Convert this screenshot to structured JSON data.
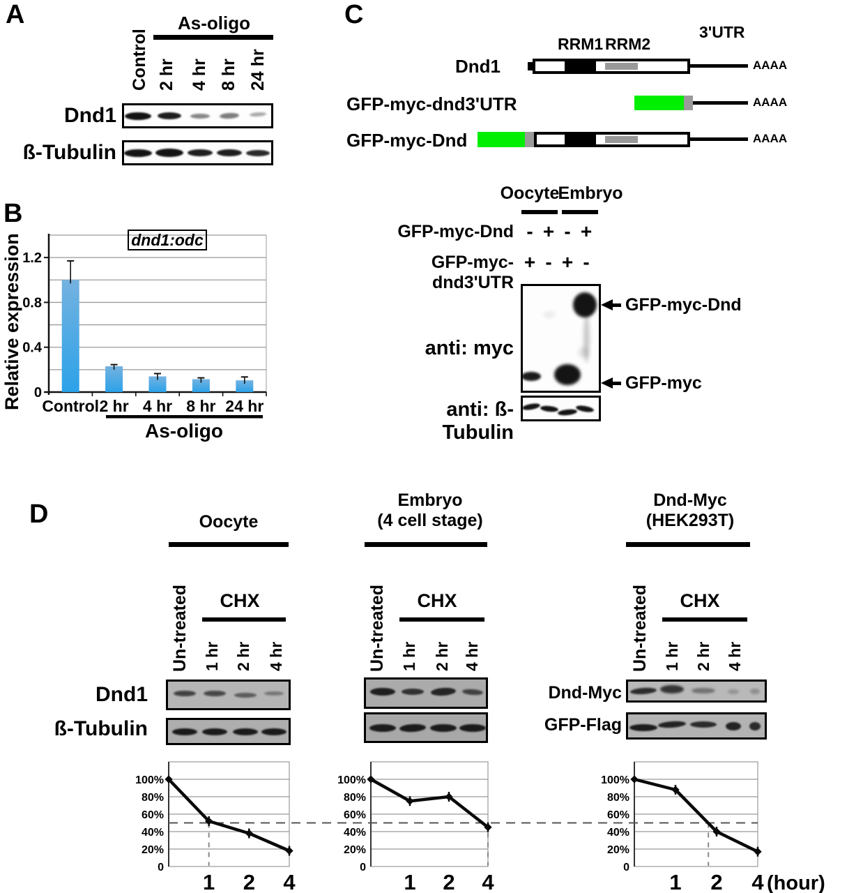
{
  "panels": {
    "A": {
      "label": "A",
      "treatment": "As-oligo",
      "lanes": [
        "Control",
        "2 hr",
        "4 hr",
        "8 hr",
        "24 hr"
      ],
      "rows": [
        "Dnd1",
        "ß-Tubulin"
      ]
    },
    "B": {
      "label": "B"
    },
    "C": {
      "label": "C",
      "diagram": {
        "domain_labels": [
          "RRM1",
          "RRM2"
        ],
        "utr_label": "3'UTR",
        "polya": "AAAA",
        "rows": [
          "Dnd1",
          "GFP-myc-dnd3'UTR",
          "GFP-myc-Dnd"
        ]
      },
      "blot": {
        "groups": [
          "Oocyte",
          "Embryo"
        ],
        "condition_rows": [
          {
            "label": "GFP-myc-Dnd",
            "signs": [
              "-",
              "+",
              "-",
              "+"
            ]
          },
          {
            "label": "GFP-myc-dnd3'UTR",
            "signs": [
              "+",
              "-",
              "+",
              "-"
            ]
          }
        ],
        "probe1": "anti: myc",
        "probe2": "anti: ß-Tubulin",
        "band_labels": [
          "GFP-myc-Dnd",
          "GFP-myc"
        ]
      }
    },
    "D": {
      "label": "D",
      "sets": [
        {
          "title": [
            "Oocyte",
            ""
          ],
          "untreated": "Un-treated",
          "treatment": "CHX",
          "times": [
            "1 hr",
            "2 hr",
            "4 hr"
          ],
          "row_labels": [
            "Dnd1",
            "ß-Tubulin"
          ]
        },
        {
          "title": [
            "Embryo",
            "(4 cell stage)"
          ],
          "untreated": "Un-treated",
          "treatment": "CHX",
          "times": [
            "1 hr",
            "2 hr",
            "4 hr"
          ],
          "row_labels": []
        },
        {
          "title": [
            "Dnd-Myc",
            "(HEK293T)"
          ],
          "untreated": "Un-treated",
          "treatment": "CHX",
          "times": [
            "1 hr",
            "2 hr",
            "4 hr"
          ],
          "row_labels": [
            "Dnd-Myc",
            "GFP-Flag"
          ]
        }
      ],
      "hour_label": "(hour)"
    }
  },
  "chart_data": [
    {
      "type": "bar",
      "title": "dnd1:odc",
      "ylabel": "Relative expression",
      "categories": [
        "Control",
        "2 hr",
        "4 hr",
        "8 hr",
        "24 hr"
      ],
      "values": [
        1.0,
        0.23,
        0.14,
        0.115,
        0.105
      ],
      "errors": [
        0.17,
        0.015,
        0.025,
        0.012,
        0.03
      ],
      "ytick_values": [
        0,
        0.4,
        0.8,
        1.2
      ],
      "ylim": [
        0,
        1.4
      ],
      "grid": true,
      "group_label": "As-oligo",
      "group_categories": [
        "2 hr",
        "4 hr",
        "8 hr",
        "24 hr"
      ],
      "bar_color_top": "#74B2E0",
      "bar_color_bottom": "#2CA2E8"
    },
    {
      "type": "line",
      "title": "Oocyte",
      "x": [
        0,
        1,
        2,
        4
      ],
      "values_pct": [
        100,
        52,
        38,
        18
      ],
      "ytick_labels": [
        "0",
        "20%",
        "40%",
        "60%",
        "80%",
        "100%"
      ],
      "ylim_pct": [
        0,
        120
      ],
      "xticklabels": [
        "1",
        "2",
        "4"
      ],
      "reference_line_pct": 50,
      "halflife_marker_cat": 1
    },
    {
      "type": "line",
      "title": "Embryo (4 cell stage)",
      "x": [
        0,
        1,
        2,
        4
      ],
      "values_pct": [
        100,
        75,
        80,
        45
      ],
      "ytick_labels": [
        "0",
        "20%",
        "40%",
        "60%",
        "80%",
        "100%"
      ],
      "ylim_pct": [
        0,
        120
      ],
      "xticklabels": [
        "1",
        "2",
        "4"
      ],
      "reference_line_pct": 50,
      "halflife_marker_cat": 3
    },
    {
      "type": "line",
      "title": "Dnd-Myc (HEK293T)",
      "x": [
        0,
        1,
        2,
        4
      ],
      "values_pct": [
        100,
        88,
        40,
        17
      ],
      "ytick_labels": [
        "0",
        "20%",
        "40%",
        "60%",
        "80%",
        "100%"
      ],
      "ylim_pct": [
        0,
        120
      ],
      "xticklabels": [
        "1",
        "2",
        "4"
      ],
      "xlabel": "(hour)",
      "reference_line_pct": 50,
      "halflife_marker_cat": 1.8
    }
  ],
  "colors": {
    "gfp_green": "#00EE00",
    "rrm2_gray": "#999999",
    "bar_top": "#74B2E0",
    "bar_bottom": "#2CA2E8",
    "dashed_reference": "#555555"
  },
  "blots": {
    "a_dnd1": {
      "bands": [
        [
          0.097,
          0.5,
          38,
          11,
          1,
          1,
          0
        ],
        [
          0.309,
          0.5,
          34,
          10,
          0.95,
          1,
          0
        ],
        [
          0.516,
          0.5,
          28,
          7,
          0.5,
          1.2,
          0
        ],
        [
          0.714,
          0.5,
          28,
          8,
          0.55,
          1.2,
          -3
        ],
        [
          0.908,
          0.42,
          24,
          6,
          0.35,
          1.3,
          -4
        ]
      ]
    },
    "a_tub": {
      "bands": [
        [
          0.097,
          0.5,
          40,
          11,
          1,
          1,
          0
        ],
        [
          0.309,
          0.5,
          40,
          12,
          1,
          1,
          0
        ],
        [
          0.516,
          0.5,
          36,
          10,
          0.95,
          1,
          0
        ],
        [
          0.714,
          0.5,
          36,
          10,
          0.95,
          1,
          0
        ],
        [
          0.908,
          0.5,
          34,
          9,
          0.9,
          1,
          0
        ]
      ]
    },
    "c_myc": {
      "bands": [
        [
          0.113,
          0.86,
          28,
          13,
          0.97,
          1.5,
          0
        ],
        [
          0.348,
          0.27,
          18,
          10,
          0.07,
          3,
          0
        ],
        [
          0.583,
          0.845,
          38,
          30,
          1,
          2,
          0
        ],
        [
          0.817,
          0.18,
          34,
          36,
          1,
          2,
          0
        ],
        [
          0.84,
          0.5,
          9,
          70,
          0.22,
          3,
          0
        ],
        [
          0.8,
          0.63,
          14,
          16,
          0.12,
          3,
          0
        ]
      ]
    },
    "c_tub": {
      "bands": [
        [
          0.113,
          0.42,
          26,
          8,
          1,
          1,
          -10
        ],
        [
          0.348,
          0.5,
          26,
          8,
          1,
          1,
          6
        ],
        [
          0.583,
          0.68,
          28,
          8,
          1,
          1,
          -6
        ],
        [
          0.817,
          0.5,
          26,
          8,
          1,
          1,
          10
        ]
      ]
    },
    "d1_dnd1": {
      "bands": [
        [
          0.14,
          0.45,
          32,
          8,
          0.72,
          1.2,
          0
        ],
        [
          0.39,
          0.45,
          32,
          8,
          0.68,
          1.2,
          0
        ],
        [
          0.64,
          0.5,
          32,
          7,
          0.55,
          1.3,
          0
        ],
        [
          0.88,
          0.45,
          28,
          6,
          0.38,
          1.4,
          0
        ]
      ]
    },
    "d1_tub": {
      "bands": [
        [
          0.14,
          0.5,
          36,
          10,
          0.95,
          1,
          0
        ],
        [
          0.39,
          0.5,
          36,
          10,
          0.95,
          1,
          0
        ],
        [
          0.64,
          0.5,
          36,
          10,
          0.95,
          1,
          0
        ],
        [
          0.88,
          0.5,
          36,
          10,
          0.95,
          1,
          0
        ]
      ]
    },
    "d2_dnd1": {
      "bands": [
        [
          0.14,
          0.45,
          36,
          11,
          0.92,
          1,
          0
        ],
        [
          0.39,
          0.45,
          32,
          9,
          0.8,
          1,
          0
        ],
        [
          0.645,
          0.45,
          36,
          11,
          0.88,
          1,
          -4
        ],
        [
          0.89,
          0.45,
          30,
          8,
          0.7,
          1.2,
          4
        ]
      ]
    },
    "d2_tub": {
      "bands": [
        [
          0.14,
          0.5,
          38,
          11,
          0.95,
          1,
          0
        ],
        [
          0.39,
          0.5,
          38,
          11,
          0.95,
          1,
          -3
        ],
        [
          0.645,
          0.5,
          38,
          11,
          0.95,
          1,
          0
        ],
        [
          0.89,
          0.5,
          38,
          11,
          0.95,
          1,
          0
        ]
      ]
    },
    "d3_dnd": {
      "bands": [
        [
          0.11,
          0.5,
          38,
          9,
          0.85,
          1.2,
          -4
        ],
        [
          0.32,
          0.42,
          34,
          12,
          0.8,
          1.5,
          0
        ],
        [
          0.55,
          0.48,
          34,
          8,
          0.42,
          1.6,
          0
        ],
        [
          0.77,
          0.55,
          16,
          7,
          0.22,
          1.6,
          0
        ],
        [
          0.93,
          0.5,
          14,
          8,
          0.25,
          1.6,
          0
        ]
      ]
    },
    "d3_flag": {
      "bands": [
        [
          0.11,
          0.58,
          40,
          10,
          0.95,
          1,
          0
        ],
        [
          0.32,
          0.45,
          40,
          9,
          0.9,
          1,
          -4
        ],
        [
          0.55,
          0.45,
          38,
          9,
          0.85,
          1,
          0
        ],
        [
          0.77,
          0.5,
          22,
          12,
          0.9,
          1,
          0
        ],
        [
          0.93,
          0.5,
          16,
          12,
          0.85,
          1,
          0
        ]
      ]
    }
  }
}
